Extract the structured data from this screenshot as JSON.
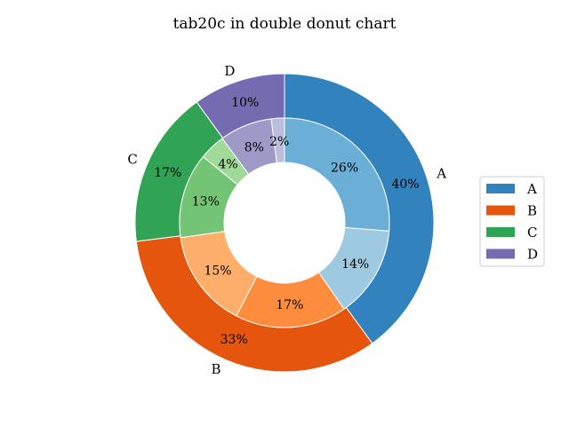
{
  "chart_data": {
    "type": "pie",
    "title": "tab20c in double donut chart",
    "outer": {
      "labels": [
        "A",
        "B",
        "C",
        "D"
      ],
      "values": [
        40,
        33,
        17,
        10
      ],
      "percent_labels": [
        "40%",
        "33%",
        "17%",
        "10%"
      ],
      "colors": [
        "#3182bd",
        "#e6550d",
        "#31a354",
        "#756bb1"
      ]
    },
    "inner": {
      "values": [
        26,
        14,
        17,
        15,
        13,
        4,
        8,
        2
      ],
      "percent_labels": [
        "26%",
        "14%",
        "17%",
        "15%",
        "13%",
        "4%",
        "8%",
        "2%"
      ],
      "colors": [
        "#6baed6",
        "#9ecae1",
        "#fd8d3c",
        "#fdae6b",
        "#74c476",
        "#a1d99b",
        "#9e9ac8",
        "#bcbddc"
      ]
    },
    "start_angle": 90,
    "direction": "clockwise",
    "legend": {
      "location": "right",
      "entries": [
        "A",
        "B",
        "C",
        "D"
      ]
    }
  }
}
